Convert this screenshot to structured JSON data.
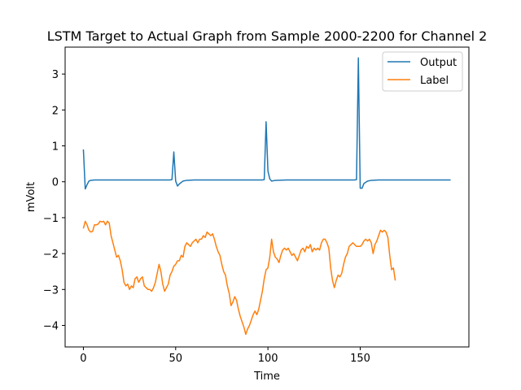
{
  "chart_data": {
    "type": "line",
    "title": "LSTM Target to Actual Graph from Sample 2000-2200 for Channel 2",
    "xlabel": "Time",
    "ylabel": "mVolt",
    "xlim": [
      -9.9,
      208.9
    ],
    "ylim": [
      -4.6,
      3.75
    ],
    "xticks": [
      0,
      50,
      100,
      150
    ],
    "yticks": [
      -4,
      -3,
      -2,
      -1,
      0,
      1,
      2,
      3
    ],
    "grid": false,
    "legend_position": "top-right",
    "series": [
      {
        "name": "Output",
        "color": "#1f77b4",
        "points": [
          [
            0,
            0.9
          ],
          [
            1,
            -0.2
          ],
          [
            2,
            -0.08
          ],
          [
            3,
            0.02
          ],
          [
            4,
            0.04
          ],
          [
            6,
            0.05
          ],
          [
            10,
            0.05
          ],
          [
            20,
            0.05
          ],
          [
            30,
            0.05
          ],
          [
            40,
            0.05
          ],
          [
            47,
            0.05
          ],
          [
            48,
            0.06
          ],
          [
            49,
            0.83
          ],
          [
            50,
            0.02
          ],
          [
            51,
            -0.12
          ],
          [
            52,
            -0.06
          ],
          [
            54,
            0.02
          ],
          [
            56,
            0.04
          ],
          [
            60,
            0.05
          ],
          [
            70,
            0.05
          ],
          [
            80,
            0.05
          ],
          [
            90,
            0.05
          ],
          [
            97,
            0.05
          ],
          [
            98,
            0.06
          ],
          [
            99,
            1.67
          ],
          [
            100,
            0.3
          ],
          [
            101,
            0.08
          ],
          [
            102,
            0.02
          ],
          [
            104,
            0.04
          ],
          [
            110,
            0.05
          ],
          [
            120,
            0.05
          ],
          [
            130,
            0.05
          ],
          [
            140,
            0.05
          ],
          [
            147,
            0.05
          ],
          [
            148,
            0.06
          ],
          [
            149,
            3.45
          ],
          [
            150,
            -0.18
          ],
          [
            151,
            -0.18
          ],
          [
            152,
            -0.05
          ],
          [
            154,
            0.02
          ],
          [
            156,
            0.04
          ],
          [
            160,
            0.05
          ],
          [
            170,
            0.05
          ],
          [
            180,
            0.05
          ],
          [
            190,
            0.05
          ],
          [
            199,
            0.05
          ]
        ]
      },
      {
        "name": "Label",
        "color": "#ff7f0e",
        "points": [
          [
            0,
            -1.3
          ],
          [
            1,
            -1.1
          ],
          [
            2,
            -1.2
          ],
          [
            3,
            -1.35
          ],
          [
            4,
            -1.4
          ],
          [
            5,
            -1.38
          ],
          [
            6,
            -1.2
          ],
          [
            7,
            -1.2
          ],
          [
            8,
            -1.18
          ],
          [
            9,
            -1.1
          ],
          [
            10,
            -1.12
          ],
          [
            11,
            -1.1
          ],
          [
            12,
            -1.2
          ],
          [
            13,
            -1.1
          ],
          [
            14,
            -1.15
          ],
          [
            15,
            -1.5
          ],
          [
            16,
            -1.7
          ],
          [
            17,
            -1.9
          ],
          [
            18,
            -2.1
          ],
          [
            19,
            -2.05
          ],
          [
            20,
            -2.2
          ],
          [
            21,
            -2.45
          ],
          [
            22,
            -2.8
          ],
          [
            23,
            -2.9
          ],
          [
            24,
            -2.85
          ],
          [
            25,
            -3.0
          ],
          [
            26,
            -2.9
          ],
          [
            27,
            -2.95
          ],
          [
            28,
            -2.7
          ],
          [
            29,
            -2.65
          ],
          [
            30,
            -2.8
          ],
          [
            31,
            -2.7
          ],
          [
            32,
            -2.65
          ],
          [
            33,
            -2.9
          ],
          [
            34,
            -2.95
          ],
          [
            35,
            -3.0
          ],
          [
            36,
            -3.0
          ],
          [
            37,
            -3.05
          ],
          [
            38,
            -2.95
          ],
          [
            39,
            -2.8
          ],
          [
            40,
            -2.55
          ],
          [
            41,
            -2.3
          ],
          [
            42,
            -2.5
          ],
          [
            43,
            -2.85
          ],
          [
            44,
            -3.05
          ],
          [
            45,
            -2.95
          ],
          [
            46,
            -2.85
          ],
          [
            47,
            -2.6
          ],
          [
            48,
            -2.5
          ],
          [
            49,
            -2.35
          ],
          [
            50,
            -2.3
          ],
          [
            51,
            -2.2
          ],
          [
            52,
            -2.2
          ],
          [
            53,
            -2.05
          ],
          [
            54,
            -2.1
          ],
          [
            55,
            -1.8
          ],
          [
            56,
            -1.7
          ],
          [
            57,
            -1.75
          ],
          [
            58,
            -1.8
          ],
          [
            59,
            -1.7
          ],
          [
            60,
            -1.65
          ],
          [
            61,
            -1.6
          ],
          [
            62,
            -1.7
          ],
          [
            63,
            -1.6
          ],
          [
            64,
            -1.6
          ],
          [
            65,
            -1.5
          ],
          [
            66,
            -1.55
          ],
          [
            67,
            -1.4
          ],
          [
            68,
            -1.45
          ],
          [
            69,
            -1.5
          ],
          [
            70,
            -1.45
          ],
          [
            71,
            -1.6
          ],
          [
            72,
            -1.8
          ],
          [
            73,
            -1.95
          ],
          [
            74,
            -2.05
          ],
          [
            75,
            -2.3
          ],
          [
            76,
            -2.5
          ],
          [
            77,
            -2.6
          ],
          [
            78,
            -2.9
          ],
          [
            79,
            -3.1
          ],
          [
            80,
            -3.45
          ],
          [
            81,
            -3.35
          ],
          [
            82,
            -3.2
          ],
          [
            83,
            -3.3
          ],
          [
            84,
            -3.55
          ],
          [
            85,
            -3.75
          ],
          [
            86,
            -3.9
          ],
          [
            87,
            -4.05
          ],
          [
            88,
            -4.25
          ],
          [
            89,
            -4.1
          ],
          [
            90,
            -4.0
          ],
          [
            91,
            -3.85
          ],
          [
            92,
            -3.7
          ],
          [
            93,
            -3.6
          ],
          [
            94,
            -3.7
          ],
          [
            95,
            -3.55
          ],
          [
            96,
            -3.3
          ],
          [
            97,
            -3.05
          ],
          [
            98,
            -2.7
          ],
          [
            99,
            -2.45
          ],
          [
            100,
            -2.4
          ],
          [
            101,
            -2.1
          ],
          [
            102,
            -1.6
          ],
          [
            103,
            -1.95
          ],
          [
            104,
            -2.1
          ],
          [
            105,
            -2.15
          ],
          [
            106,
            -2.25
          ],
          [
            107,
            -2.05
          ],
          [
            108,
            -1.9
          ],
          [
            109,
            -1.85
          ],
          [
            110,
            -1.9
          ],
          [
            111,
            -1.85
          ],
          [
            112,
            -1.95
          ],
          [
            113,
            -2.05
          ],
          [
            114,
            -2.0
          ],
          [
            115,
            -2.1
          ],
          [
            116,
            -2.2
          ],
          [
            117,
            -2.05
          ],
          [
            118,
            -1.9
          ],
          [
            119,
            -1.85
          ],
          [
            120,
            -1.95
          ],
          [
            121,
            -1.8
          ],
          [
            122,
            -1.85
          ],
          [
            123,
            -1.75
          ],
          [
            124,
            -1.95
          ],
          [
            125,
            -1.85
          ],
          [
            126,
            -1.9
          ],
          [
            127,
            -1.85
          ],
          [
            128,
            -1.9
          ],
          [
            129,
            -1.7
          ],
          [
            130,
            -1.6
          ],
          [
            131,
            -1.6
          ],
          [
            132,
            -1.7
          ],
          [
            133,
            -1.85
          ],
          [
            134,
            -2.4
          ],
          [
            135,
            -2.75
          ],
          [
            136,
            -2.95
          ],
          [
            137,
            -2.75
          ],
          [
            138,
            -2.6
          ],
          [
            139,
            -2.65
          ],
          [
            140,
            -2.55
          ],
          [
            141,
            -2.3
          ],
          [
            142,
            -2.1
          ],
          [
            143,
            -2.0
          ],
          [
            144,
            -1.8
          ],
          [
            145,
            -1.75
          ],
          [
            146,
            -1.7
          ],
          [
            147,
            -1.75
          ],
          [
            148,
            -1.8
          ],
          [
            149,
            -1.8
          ],
          [
            150,
            -1.8
          ],
          [
            151,
            -1.75
          ],
          [
            152,
            -1.65
          ],
          [
            153,
            -1.6
          ],
          [
            154,
            -1.65
          ],
          [
            155,
            -1.6
          ],
          [
            156,
            -1.7
          ],
          [
            157,
            -2.0
          ],
          [
            158,
            -1.75
          ],
          [
            159,
            -1.65
          ],
          [
            160,
            -1.5
          ],
          [
            161,
            -1.35
          ],
          [
            162,
            -1.4
          ],
          [
            163,
            -1.35
          ],
          [
            164,
            -1.4
          ],
          [
            165,
            -1.55
          ],
          [
            166,
            -2.05
          ],
          [
            167,
            -2.45
          ],
          [
            168,
            -2.4
          ],
          [
            169,
            -2.75
          ]
        ]
      }
    ]
  }
}
